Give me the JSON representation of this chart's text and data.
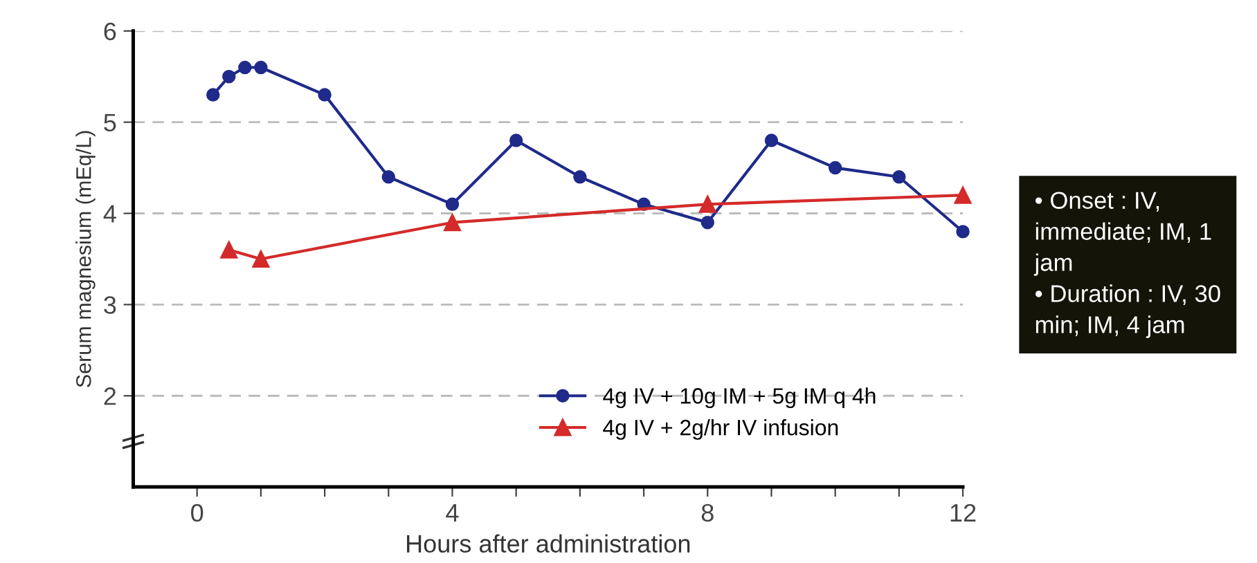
{
  "chart_data": {
    "type": "line",
    "xlabel": "Hours after administration",
    "ylabel": "Serum magnesium (mEq/L)",
    "series": [
      {
        "name": "4g IV + 10g IM + 5g IM q 4h",
        "color": "#1f2a8a",
        "marker": "circle",
        "x": [
          0.25,
          0.5,
          0.75,
          1,
          2,
          3,
          4,
          5,
          6,
          7,
          8,
          9,
          10,
          11,
          12
        ],
        "values": [
          5.3,
          5.5,
          5.6,
          5.6,
          5.3,
          4.4,
          4.1,
          4.8,
          4.4,
          4.1,
          3.9,
          4.8,
          4.5,
          4.4,
          3.8
        ]
      },
      {
        "name": "4g IV + 2g/hr IV infusion",
        "color": "#d42a2a",
        "marker": "triangle",
        "x": [
          0.5,
          1,
          4,
          8,
          12
        ],
        "values": [
          3.6,
          3.5,
          3.9,
          4.1,
          4.2
        ]
      }
    ],
    "xlim": [
      -1,
      12
    ],
    "xticks": [
      0,
      {
        "value": 1,
        "label": null
      },
      {
        "value": 2,
        "label": null
      },
      {
        "value": 3,
        "label": null
      },
      4,
      {
        "value": 5,
        "label": null
      },
      {
        "value": 6,
        "label": null
      },
      {
        "value": 7,
        "label": null
      },
      8,
      {
        "value": 9,
        "label": null
      },
      {
        "value": 10,
        "label": null
      },
      {
        "value": 11,
        "label": null
      },
      12
    ],
    "ylim": [
      1,
      6
    ],
    "yticks": [
      2,
      3,
      4,
      5,
      6
    ],
    "grid": "y",
    "legend": "bottom right",
    "line_style": "solid",
    "annotations": [
      "• Onset : IV, immediate; IM, 1 jam",
      "• Duration : IV, 30 min; IM, 4 jam"
    ]
  }
}
